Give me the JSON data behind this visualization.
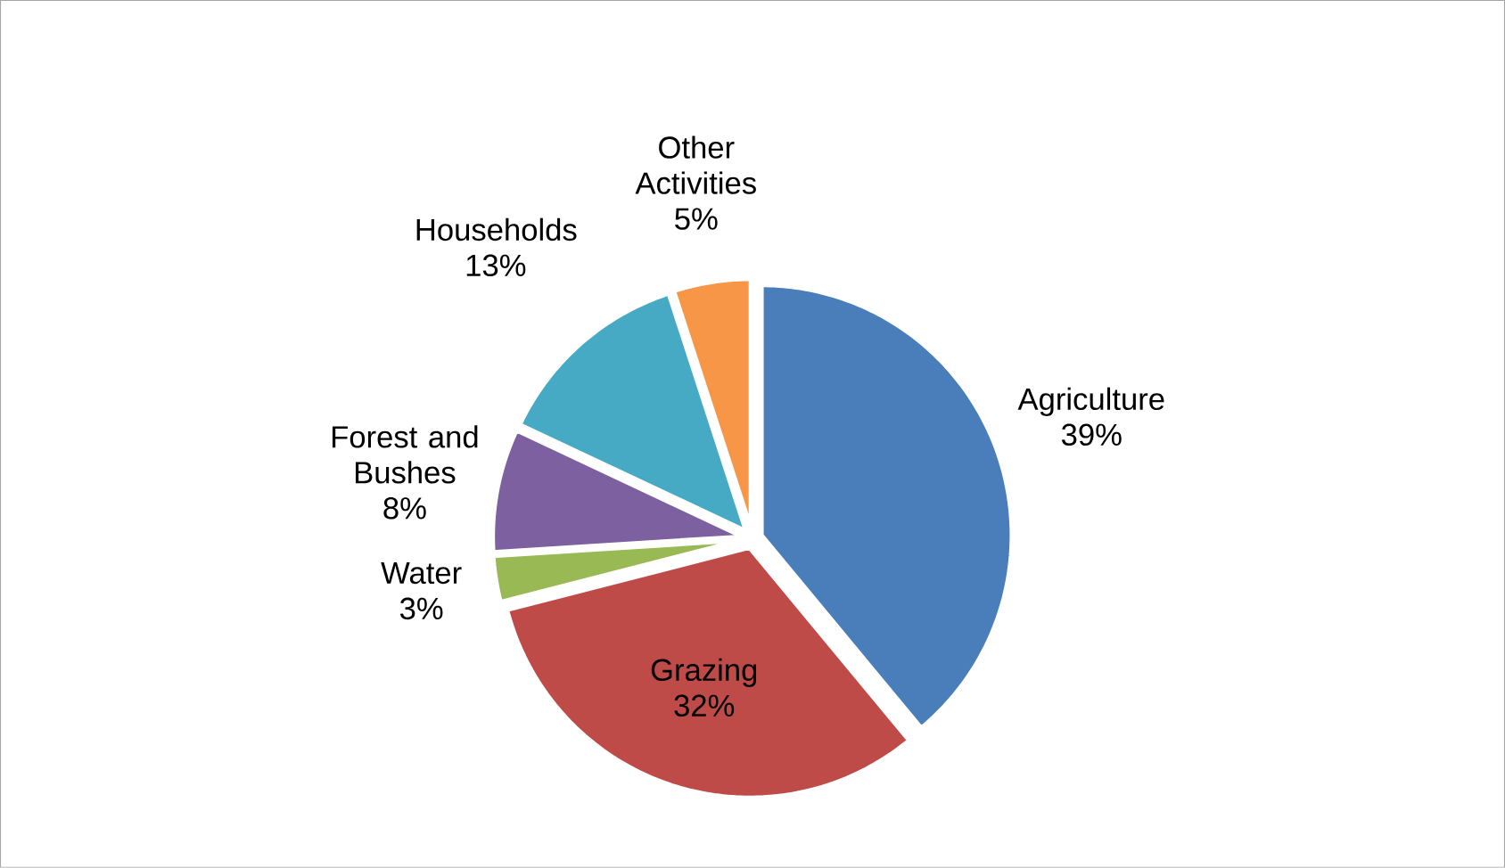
{
  "chart_data": {
    "type": "pie",
    "categories": [
      "Agriculture",
      "Grazing",
      "Water",
      "Forest and Bushes",
      "Households",
      "Other Activities"
    ],
    "values": [
      39,
      32,
      3,
      8,
      13,
      5
    ],
    "value_labels": [
      "39%",
      "32%",
      "3%",
      "8%",
      "13%",
      "5%"
    ],
    "colors": [
      "#4a7ebb",
      "#be4b48",
      "#98b954",
      "#7d60a0",
      "#46aac5",
      "#f79646"
    ]
  }
}
